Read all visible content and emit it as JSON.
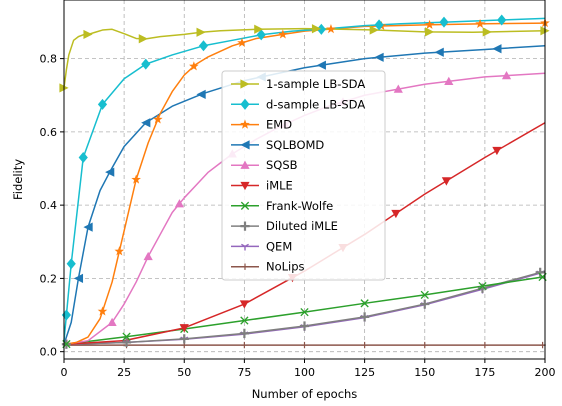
{
  "chart_data": {
    "type": "line",
    "title": "",
    "xlabel": "Number of epochs",
    "ylabel": "Fidelity",
    "xlim": [
      0,
      200
    ],
    "ylim": [
      -0.02,
      0.96
    ],
    "xticks": [
      0,
      25,
      50,
      75,
      100,
      125,
      150,
      175,
      200
    ],
    "yticks": [
      0.0,
      0.2,
      0.4,
      0.6,
      0.8
    ],
    "grid": true,
    "legend_position": "center",
    "series": [
      {
        "name": "1-sample LB-SDA",
        "color": "#bcbd22",
        "marker": "triangle-right",
        "x": [
          0,
          1,
          2,
          4,
          6,
          8,
          10,
          13,
          16,
          20,
          25,
          30,
          34,
          40,
          50,
          57,
          65,
          80,
          100,
          110,
          130,
          150,
          170,
          200
        ],
        "y": [
          0.72,
          0.77,
          0.81,
          0.85,
          0.86,
          0.865,
          0.866,
          0.872,
          0.878,
          0.88,
          0.868,
          0.855,
          0.854,
          0.86,
          0.866,
          0.872,
          0.876,
          0.88,
          0.882,
          0.881,
          0.878,
          0.873,
          0.872,
          0.876
        ],
        "marker_x": [
          0,
          10,
          33,
          57,
          81,
          105,
          129,
          152,
          176,
          200
        ]
      },
      {
        "name": "d-sample LB-SDA",
        "color": "#17becf",
        "marker": "diamond",
        "x": [
          0,
          3,
          8,
          16,
          25,
          34,
          45,
          58,
          70,
          82,
          95,
          107,
          125,
          140,
          160,
          180,
          200
        ],
        "y": [
          0.03,
          0.24,
          0.53,
          0.675,
          0.745,
          0.785,
          0.81,
          0.835,
          0.85,
          0.865,
          0.875,
          0.88,
          0.89,
          0.895,
          0.9,
          0.905,
          0.91
        ],
        "marker_x": [
          1,
          3,
          8,
          16,
          34,
          58,
          82,
          107,
          131,
          158,
          182
        ]
      },
      {
        "name": "EMD",
        "color": "#ff7f0e",
        "marker": "star",
        "x": [
          0,
          5,
          10,
          15,
          20,
          25,
          30,
          35,
          40,
          45,
          50,
          55,
          60,
          65,
          70,
          75,
          80,
          90,
          100,
          110,
          125,
          150,
          175,
          200
        ],
        "y": [
          0.02,
          0.025,
          0.04,
          0.09,
          0.19,
          0.33,
          0.47,
          0.57,
          0.65,
          0.71,
          0.755,
          0.785,
          0.805,
          0.82,
          0.835,
          0.845,
          0.855,
          0.865,
          0.875,
          0.88,
          0.888,
          0.892,
          0.895,
          0.897
        ],
        "marker_x": [
          16,
          23,
          30,
          39,
          54,
          74,
          91,
          111,
          132,
          152,
          173,
          200
        ]
      },
      {
        "name": "SQLBOMD",
        "color": "#1f77b4",
        "marker": "triangle-left",
        "x": [
          0,
          3,
          6,
          10,
          15,
          19,
          25,
          34,
          45,
          58,
          75,
          100,
          125,
          150,
          175,
          200
        ],
        "y": [
          0.02,
          0.08,
          0.2,
          0.34,
          0.44,
          0.49,
          0.56,
          0.625,
          0.67,
          0.705,
          0.74,
          0.775,
          0.8,
          0.815,
          0.825,
          0.835
        ],
        "marker_x": [
          6,
          10,
          19,
          34,
          57,
          82,
          107,
          131,
          156,
          180
        ]
      },
      {
        "name": "SQSB",
        "color": "#e377c2",
        "marker": "triangle-up",
        "x": [
          0,
          10,
          20,
          25,
          30,
          35,
          40,
          45,
          50,
          55,
          60,
          65,
          70,
          75,
          80,
          90,
          100,
          110,
          125,
          150,
          175,
          200
        ],
        "y": [
          0.02,
          0.03,
          0.08,
          0.13,
          0.19,
          0.26,
          0.32,
          0.38,
          0.42,
          0.455,
          0.49,
          0.515,
          0.54,
          0.56,
          0.58,
          0.615,
          0.645,
          0.67,
          0.7,
          0.73,
          0.75,
          0.76
        ],
        "marker_x": [
          20,
          35,
          48,
          70,
          92,
          116,
          139,
          160,
          184
        ]
      },
      {
        "name": "iMLE",
        "color": "#d62728",
        "marker": "triangle-down",
        "x": [
          0,
          25,
          50,
          75,
          100,
          125,
          150,
          175,
          200
        ],
        "y": [
          0.02,
          0.03,
          0.065,
          0.13,
          0.22,
          0.32,
          0.43,
          0.53,
          0.625
        ],
        "marker_x": [
          50,
          75,
          95,
          116,
          138,
          159,
          180
        ]
      },
      {
        "name": "Frank-Wolfe",
        "color": "#2ca02c",
        "marker": "x",
        "x": [
          0,
          25,
          50,
          75,
          100,
          125,
          150,
          175,
          200
        ],
        "y": [
          0.02,
          0.04,
          0.062,
          0.085,
          0.108,
          0.132,
          0.155,
          0.18,
          0.205
        ],
        "marker_x": [
          1,
          26,
          50,
          75,
          100,
          125,
          150,
          174,
          199
        ]
      },
      {
        "name": "Diluted iMLE",
        "color": "#7f7f7f",
        "marker": "plus",
        "x": [
          0,
          25,
          50,
          75,
          100,
          125,
          150,
          175,
          200
        ],
        "y": [
          0.02,
          0.025,
          0.035,
          0.05,
          0.07,
          0.095,
          0.13,
          0.175,
          0.22
        ],
        "marker_x": [
          1,
          26,
          50,
          75,
          100,
          125,
          150,
          174,
          198
        ]
      },
      {
        "name": "QEM",
        "color": "#9467bd",
        "marker": "tri-down",
        "x": [
          0,
          25,
          50,
          75,
          100,
          125,
          150,
          175,
          200
        ],
        "y": [
          0.02,
          0.025,
          0.034,
          0.048,
          0.068,
          0.093,
          0.128,
          0.172,
          0.218
        ],
        "marker_x": [
          26,
          50,
          75,
          100,
          125,
          150,
          174,
          198
        ]
      },
      {
        "name": "NoLips",
        "color": "#8c564b",
        "marker": "plus-small",
        "x": [
          0,
          200
        ],
        "y": [
          0.018,
          0.018
        ],
        "marker_x": [
          1,
          26,
          50,
          75,
          100,
          125,
          150,
          175,
          199
        ]
      }
    ]
  }
}
